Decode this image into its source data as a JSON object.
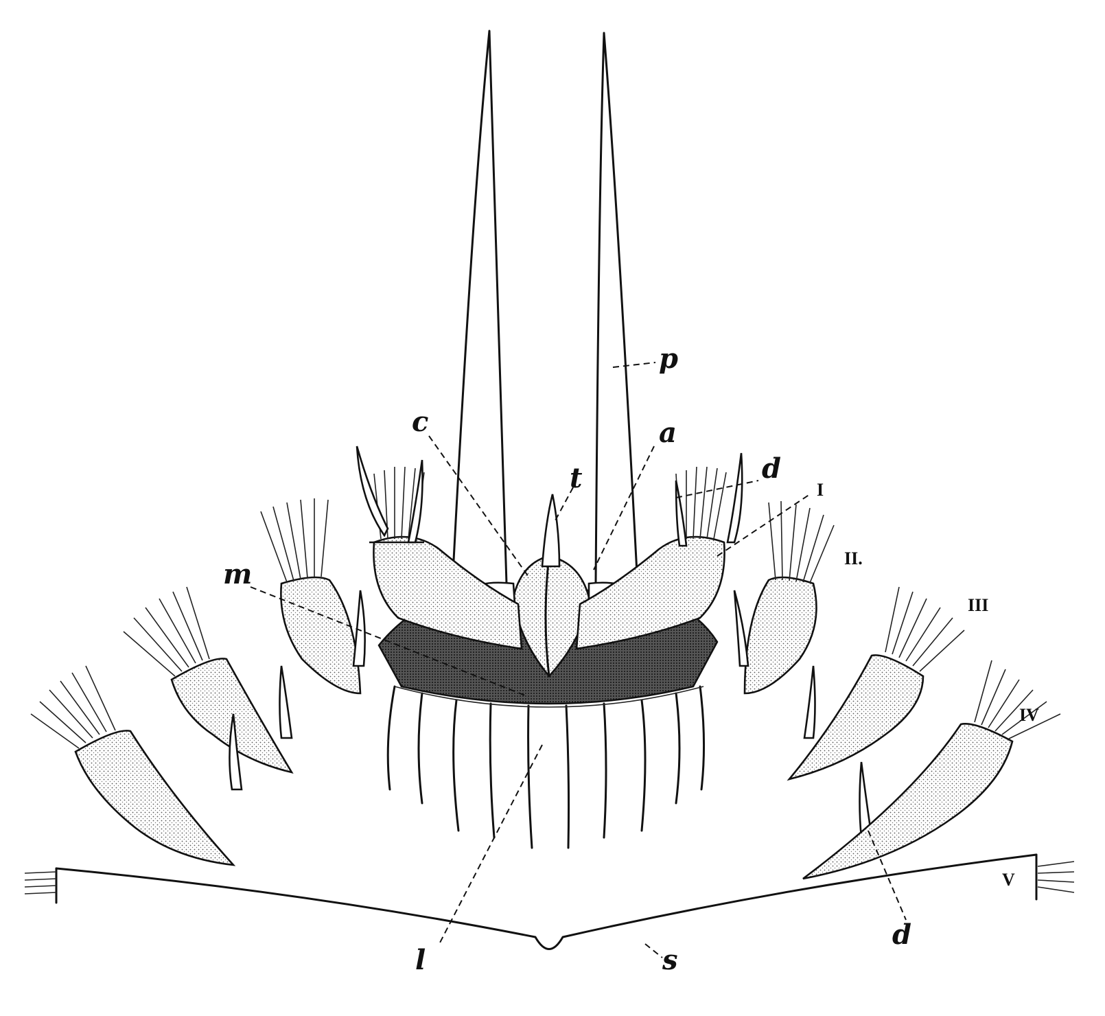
{
  "labels": {
    "p": "p",
    "c": "c",
    "a": "a",
    "t": "t",
    "d_upper": "d",
    "d_lower": "d",
    "m": "m",
    "l": "l",
    "s": "s"
  },
  "roman": {
    "I": "I",
    "II": "II.",
    "III": "III",
    "IV": "IV",
    "V": "V"
  }
}
